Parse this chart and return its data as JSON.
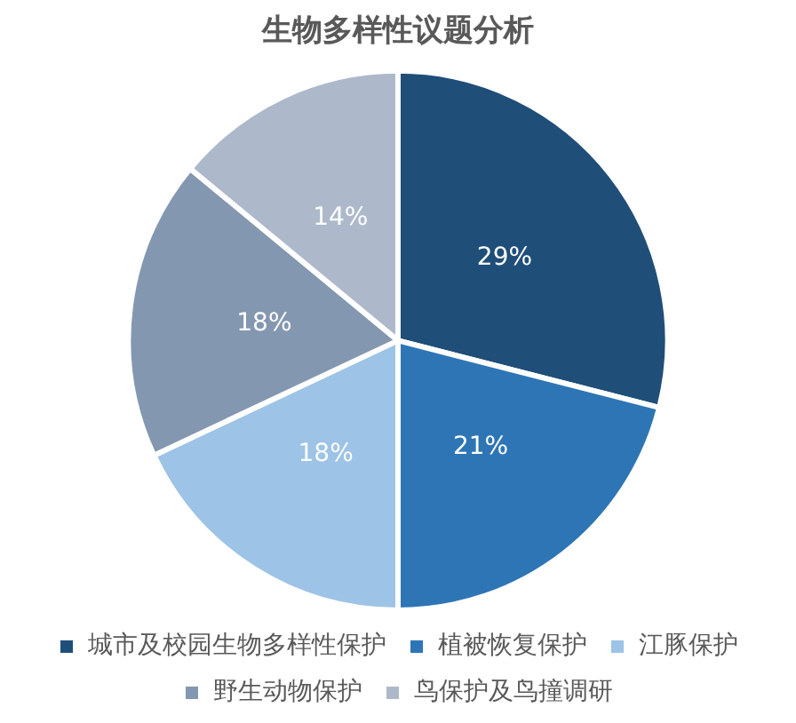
{
  "chart_data": {
    "type": "pie",
    "title": "生物多样性议题分析",
    "categories": [
      "城市及校园生物多样性保护",
      "植被恢复保护",
      "江豚保护",
      "野生动物保护",
      "鸟保护及鸟撞调研"
    ],
    "values": [
      29,
      21,
      18,
      18,
      14
    ],
    "value_labels": [
      "29%",
      "21%",
      "18%",
      "18%",
      "14%"
    ],
    "colors": [
      "#1f4e79",
      "#2e75b6",
      "#9dc3e6",
      "#8497b0",
      "#adb9ca"
    ],
    "legend": "bottom"
  }
}
